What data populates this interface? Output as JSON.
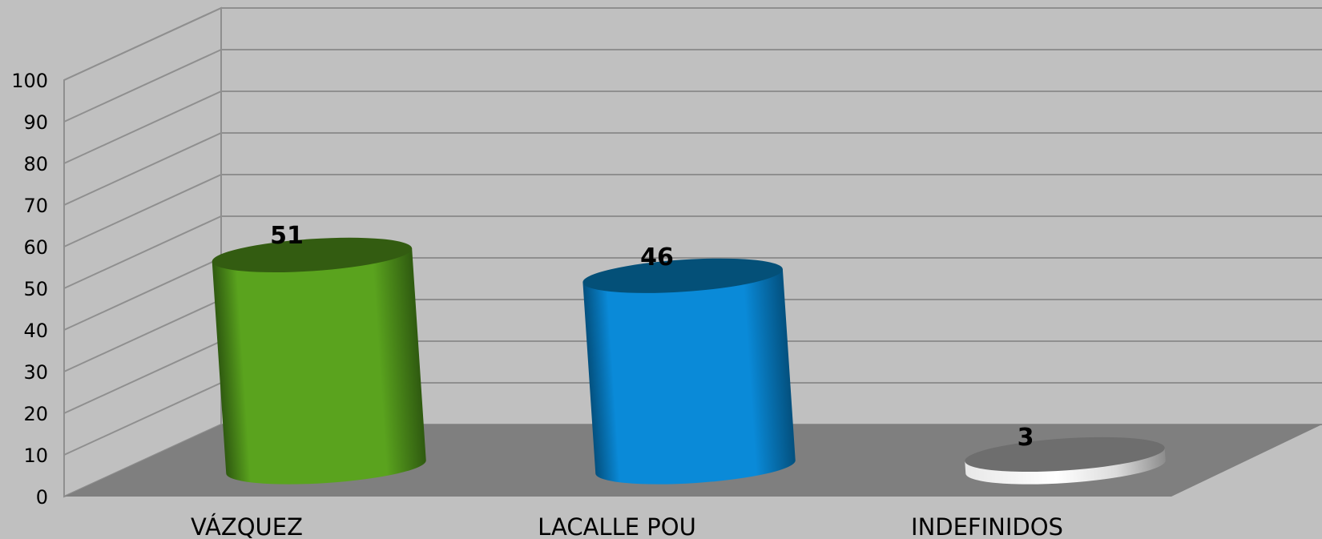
{
  "chart_data": {
    "type": "bar",
    "style": "3d-cylinder",
    "categories": [
      "VÁZQUEZ",
      "LACALLE POU",
      "INDEFINIDOS"
    ],
    "values": [
      51,
      46,
      3
    ],
    "ylim": [
      0,
      100
    ],
    "yticks": [
      0,
      10,
      20,
      30,
      40,
      50,
      60,
      70,
      80,
      90,
      100
    ],
    "colors": [
      "#5aa31e",
      "#0a8ad8",
      "#c8c8c8"
    ],
    "top_colors": [
      "#335c11",
      "#045078",
      "#6e6e6e"
    ],
    "side_colors": [
      "#2f5a10",
      "#03507e",
      "#9a9a9a"
    ],
    "title": "",
    "xlabel": "",
    "ylabel": "",
    "grid": true,
    "legend": "none"
  }
}
